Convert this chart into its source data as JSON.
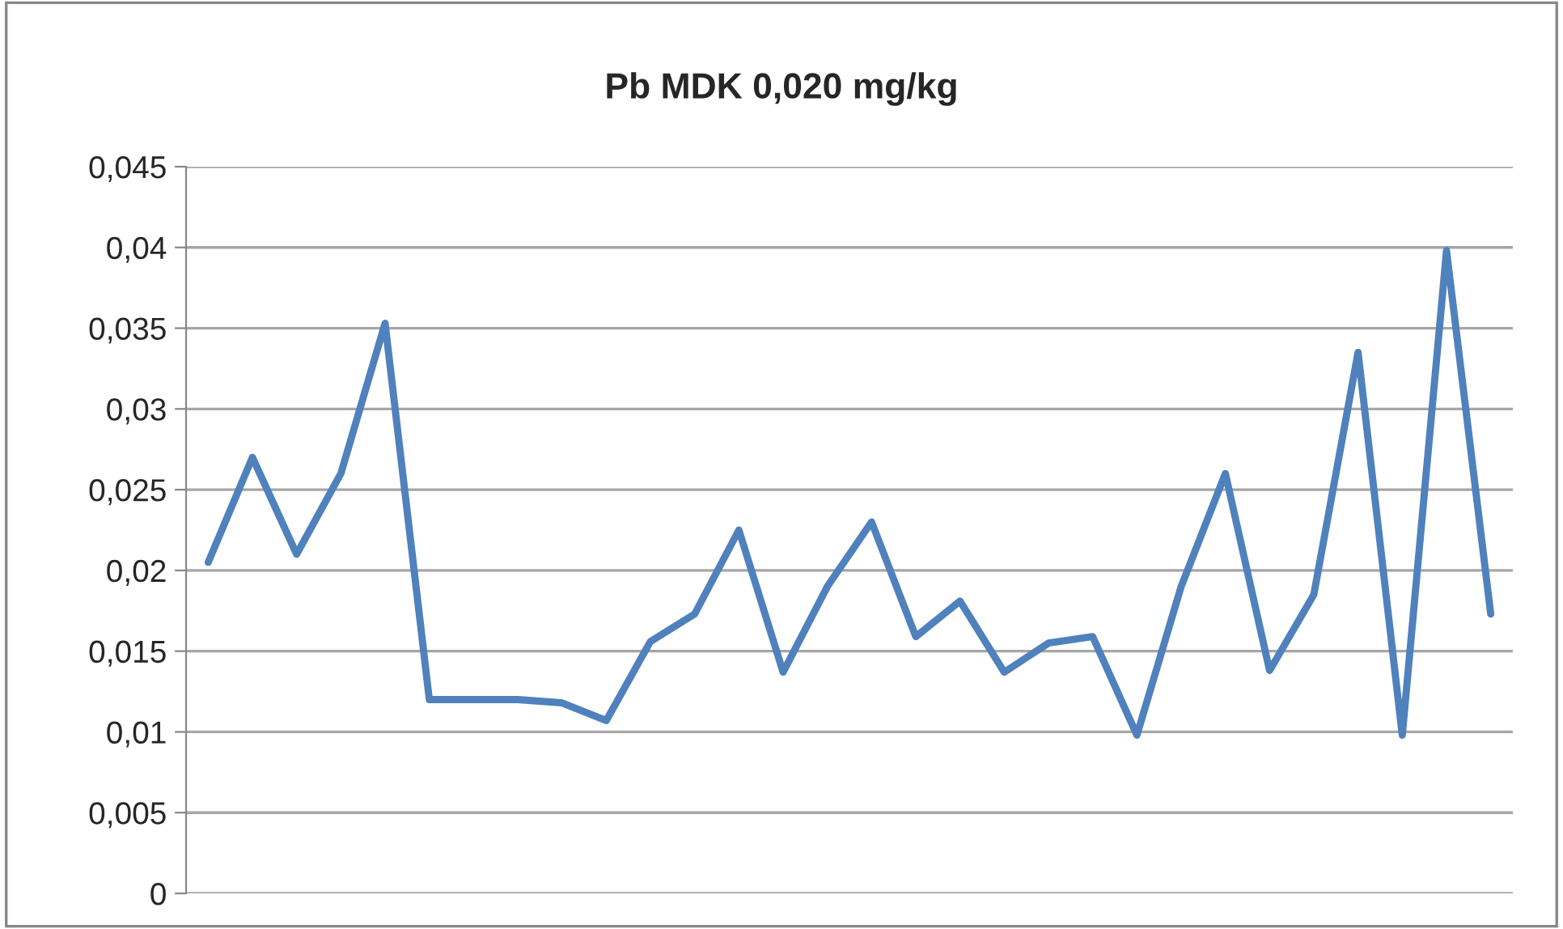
{
  "chart_data": {
    "type": "line",
    "title": "Pb MDK 0,020 mg/kg",
    "categories": [
      null,
      null,
      null,
      null,
      null,
      null,
      null,
      null,
      null,
      null,
      null,
      null,
      null,
      null,
      null,
      null,
      null,
      null,
      null,
      null,
      null,
      null,
      null,
      null,
      null,
      null,
      null,
      null,
      null,
      null
    ],
    "series": [
      {
        "color": "#4f81bd",
        "values": [
          0.0205,
          0.027,
          0.021,
          0.026,
          0.0353,
          0.012,
          0.012,
          0.012,
          0.0118,
          0.0107,
          0.0156,
          0.0173,
          0.0225,
          0.0137,
          0.019,
          0.023,
          0.0159,
          0.0181,
          0.0137,
          0.0155,
          0.0159,
          0.0098,
          0.019,
          0.026,
          0.0138,
          0.0185,
          0.0335,
          0.0098,
          0.0398,
          0.0173
        ]
      }
    ],
    "ylim": [
      0,
      0.045
    ],
    "yticks": [
      {
        "value": 0,
        "label": "0"
      },
      {
        "value": 0.005,
        "label": "0,005"
      },
      {
        "value": 0.01,
        "label": "0,01"
      },
      {
        "value": 0.015,
        "label": "0,015"
      },
      {
        "value": 0.02,
        "label": "0,02"
      },
      {
        "value": 0.025,
        "label": "0,025"
      },
      {
        "value": 0.03,
        "label": "0,03"
      },
      {
        "value": 0.035,
        "label": "0,035"
      },
      {
        "value": 0.04,
        "label": "0,04"
      },
      {
        "value": 0.045,
        "label": "0,045"
      }
    ],
    "grid": "y",
    "tick_labels": "y",
    "marker": "none",
    "line_style": "solid"
  }
}
